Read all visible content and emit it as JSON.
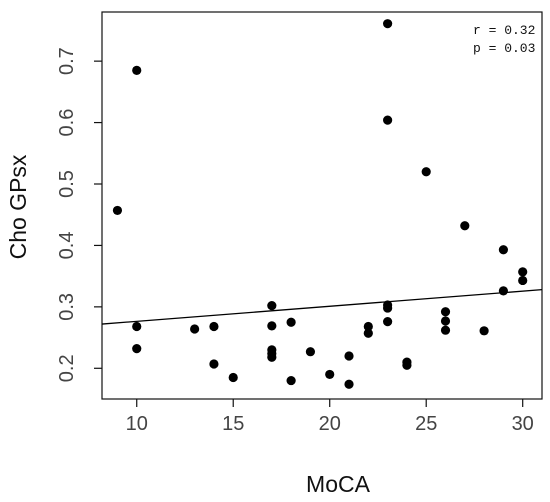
{
  "chart_data": {
    "type": "scatter",
    "xlabel": "MoCA",
    "ylabel": "Cho GPsx",
    "xlim": [
      8.2,
      31.0
    ],
    "ylim": [
      0.15,
      0.78
    ],
    "x_ticks": [
      10,
      15,
      20,
      25,
      30
    ],
    "y_ticks": [
      0.2,
      0.3,
      0.4,
      0.5,
      0.6,
      0.7
    ],
    "x_tick_labels": [
      "10",
      "15",
      "20",
      "25",
      "30"
    ],
    "y_tick_labels": [
      "0.2",
      "0.3",
      "0.4",
      "0.5",
      "0.6",
      "0.7"
    ],
    "grid": false,
    "annotations": [
      "r = 0.32",
      "p = 0.03"
    ],
    "points": [
      {
        "x": 9,
        "y": 0.457
      },
      {
        "x": 10,
        "y": 0.685
      },
      {
        "x": 10,
        "y": 0.268
      },
      {
        "x": 10,
        "y": 0.232
      },
      {
        "x": 13,
        "y": 0.264
      },
      {
        "x": 14,
        "y": 0.268
      },
      {
        "x": 14,
        "y": 0.207
      },
      {
        "x": 15,
        "y": 0.185
      },
      {
        "x": 17,
        "y": 0.302
      },
      {
        "x": 17,
        "y": 0.269
      },
      {
        "x": 17,
        "y": 0.23
      },
      {
        "x": 17,
        "y": 0.224
      },
      {
        "x": 17,
        "y": 0.218
      },
      {
        "x": 18,
        "y": 0.275
      },
      {
        "x": 18,
        "y": 0.18
      },
      {
        "x": 19,
        "y": 0.227
      },
      {
        "x": 20,
        "y": 0.19
      },
      {
        "x": 21,
        "y": 0.22
      },
      {
        "x": 21,
        "y": 0.174
      },
      {
        "x": 22,
        "y": 0.268
      },
      {
        "x": 22,
        "y": 0.257
      },
      {
        "x": 23,
        "y": 0.761
      },
      {
        "x": 23,
        "y": 0.604
      },
      {
        "x": 23,
        "y": 0.303
      },
      {
        "x": 23,
        "y": 0.298
      },
      {
        "x": 23,
        "y": 0.276
      },
      {
        "x": 24,
        "y": 0.21
      },
      {
        "x": 24,
        "y": 0.205
      },
      {
        "x": 25,
        "y": 0.52
      },
      {
        "x": 26,
        "y": 0.292
      },
      {
        "x": 26,
        "y": 0.277
      },
      {
        "x": 26,
        "y": 0.262
      },
      {
        "x": 27,
        "y": 0.432
      },
      {
        "x": 28,
        "y": 0.261
      },
      {
        "x": 29,
        "y": 0.393
      },
      {
        "x": 29,
        "y": 0.326
      },
      {
        "x": 30,
        "y": 0.357
      },
      {
        "x": 30,
        "y": 0.343
      }
    ],
    "regression_line": {
      "x": [
        8.2,
        31.0
      ],
      "y": [
        0.272,
        0.328
      ]
    },
    "marker_color": "#000000",
    "line_color": "#000000"
  }
}
